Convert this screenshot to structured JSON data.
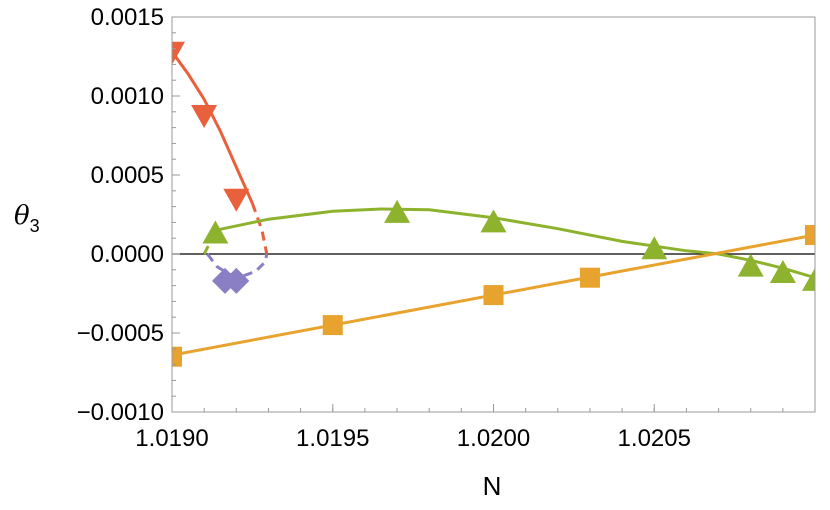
{
  "chart_data": {
    "type": "line",
    "title": "",
    "xlabel": "N",
    "ylabel": {
      "symbol": "θ",
      "subscript": "3"
    },
    "xlim": [
      1.019,
      1.021
    ],
    "ylim": [
      -0.001,
      0.0015
    ],
    "x_ticks": [
      1.019,
      1.0195,
      1.02,
      1.0205
    ],
    "x_tick_labels": [
      "1.0190",
      "1.0195",
      "1.0200",
      "1.0205"
    ],
    "y_ticks": [
      -0.001,
      -0.0005,
      0.0,
      0.0005,
      0.001,
      0.0015
    ],
    "y_tick_labels": [
      "−0.0010",
      "−0.0005",
      "0.0000",
      "0.0005",
      "0.0010",
      "0.0015"
    ],
    "zero_line": true,
    "grid": false,
    "series": [
      {
        "color": "#e8603c",
        "marker": "triangle-down",
        "line": [
          {
            "x": 1.019,
            "y": 0.00128
          },
          {
            "x": 1.01905,
            "y": 0.00114
          },
          {
            "x": 1.0191,
            "y": 0.00098
          },
          {
            "x": 1.01915,
            "y": 0.00078
          },
          {
            "x": 1.0192,
            "y": 0.00055
          },
          {
            "x": 1.01925,
            "y": 0.00032
          }
        ],
        "dashed_line": [
          {
            "x": 1.01925,
            "y": 0.00032
          },
          {
            "x": 1.01928,
            "y": 0.00015
          },
          {
            "x": 1.019295,
            "y": 0.0
          }
        ],
        "points": [
          {
            "x": 1.019,
            "y": 0.00128
          },
          {
            "x": 1.0191,
            "y": 0.00088
          },
          {
            "x": 1.0192,
            "y": 0.00035
          }
        ]
      },
      {
        "color": "#8a7fc4",
        "marker": "diamond",
        "line": [],
        "dashed_line": [
          {
            "x": 1.01911,
            "y": 0.0
          },
          {
            "x": 1.01914,
            "y": -8e-05
          },
          {
            "x": 1.01918,
            "y": -0.00013
          },
          {
            "x": 1.01922,
            "y": -0.00014
          },
          {
            "x": 1.01926,
            "y": -0.00011
          },
          {
            "x": 1.01929,
            "y": -5e-05
          },
          {
            "x": 1.019295,
            "y": 0.0
          }
        ],
        "points": [
          {
            "x": 1.019165,
            "y": -0.00017
          },
          {
            "x": 1.0192,
            "y": -0.00017
          }
        ]
      },
      {
        "color": "#8db32e",
        "marker": "triangle-up",
        "line": [
          {
            "x": 1.019135,
            "y": 0.00015
          },
          {
            "x": 1.0193,
            "y": 0.00022
          },
          {
            "x": 1.0195,
            "y": 0.00027
          },
          {
            "x": 1.01965,
            "y": 0.000285
          },
          {
            "x": 1.0198,
            "y": 0.00028
          },
          {
            "x": 1.02,
            "y": 0.00023
          },
          {
            "x": 1.0202,
            "y": 0.00016
          },
          {
            "x": 1.0204,
            "y": 8e-05
          },
          {
            "x": 1.0206,
            "y": 2e-05
          },
          {
            "x": 1.0207,
            "y": 0.0
          },
          {
            "x": 1.0208,
            "y": -4e-05
          },
          {
            "x": 1.0209,
            "y": -9e-05
          },
          {
            "x": 1.021,
            "y": -0.00015
          }
        ],
        "dashed_line": [
          {
            "x": 1.0191,
            "y": 0.0
          },
          {
            "x": 1.01912,
            "y": 8e-05
          },
          {
            "x": 1.019135,
            "y": 0.00015
          }
        ],
        "points": [
          {
            "x": 1.019135,
            "y": 0.00013
          },
          {
            "x": 1.0197,
            "y": 0.00026
          },
          {
            "x": 1.02,
            "y": 0.0002
          },
          {
            "x": 1.0205,
            "y": 3e-05
          },
          {
            "x": 1.0208,
            "y": -8e-05
          },
          {
            "x": 1.0209,
            "y": -0.00012
          },
          {
            "x": 1.021,
            "y": -0.00017
          }
        ]
      },
      {
        "color": "#e8a22e",
        "marker": "square",
        "line": [
          {
            "x": 1.019,
            "y": -0.00064
          },
          {
            "x": 1.021,
            "y": 0.00012
          }
        ],
        "dashed_line": [],
        "points": [
          {
            "x": 1.019,
            "y": -0.00065
          },
          {
            "x": 1.0195,
            "y": -0.00045
          },
          {
            "x": 1.02,
            "y": -0.00026
          },
          {
            "x": 1.0203,
            "y": -0.00015
          },
          {
            "x": 1.021,
            "y": 0.00012
          }
        ]
      }
    ]
  }
}
